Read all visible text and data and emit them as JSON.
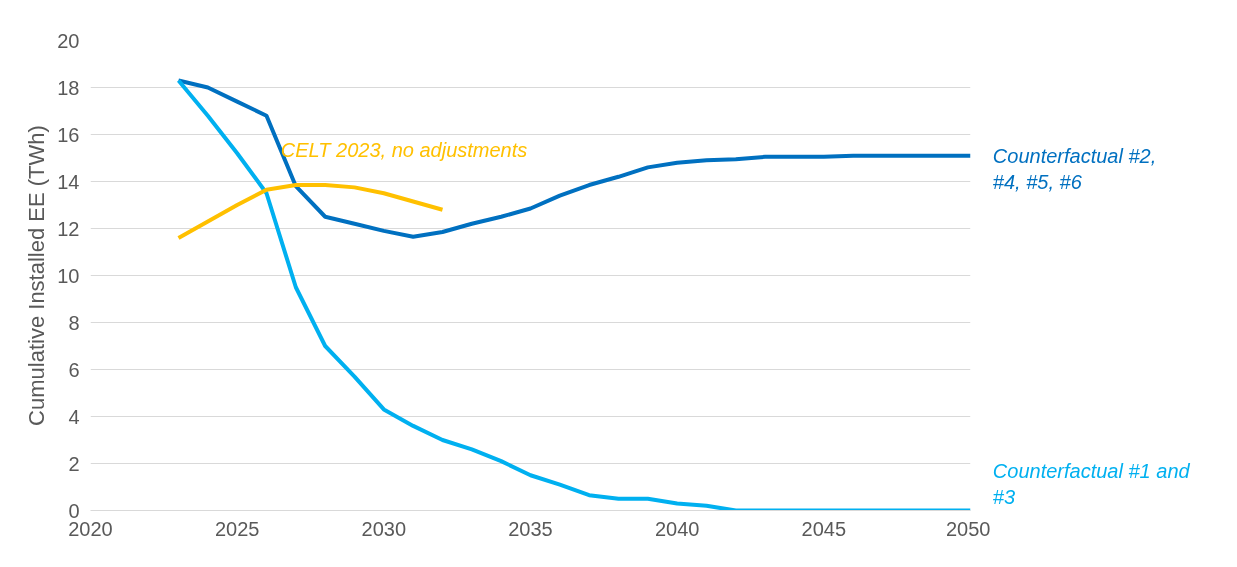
{
  "chart_data": {
    "type": "line",
    "ylabel": "Cumulative Installed EE (TWh)",
    "xlim": [
      2020,
      2050
    ],
    "xticks": [
      2020,
      2025,
      2030,
      2035,
      2040,
      2045,
      2050
    ],
    "ylim": [
      0,
      20
    ],
    "yticks": [
      0,
      2,
      4,
      6,
      8,
      10,
      12,
      14,
      16,
      18,
      20
    ],
    "grid": "y",
    "marker": "none",
    "line_style": "solid",
    "series": [
      {
        "name": "Counterfactual #2, #4, #5, #6",
        "color": "#0070c0",
        "x": [
          2023,
          2024,
          2025,
          2026,
          2027,
          2028,
          2029,
          2030,
          2031,
          2032,
          2033,
          2034,
          2035,
          2036,
          2037,
          2038,
          2039,
          2040,
          2041,
          2042,
          2043,
          2044,
          2045,
          2046,
          2047,
          2048,
          2049,
          2050
        ],
        "values": [
          18.3,
          18.0,
          17.4,
          16.8,
          13.8,
          12.5,
          12.2,
          11.9,
          11.65,
          11.85,
          12.2,
          12.5,
          12.85,
          13.4,
          13.85,
          14.2,
          14.6,
          14.8,
          14.9,
          14.95,
          15.05,
          15.05,
          15.05,
          15.1,
          15.1,
          15.1,
          15.1,
          15.1
        ]
      },
      {
        "name": "Counterfactual #1 and #3",
        "color": "#00b0f0",
        "x": [
          2023,
          2024,
          2025,
          2026,
          2027,
          2028,
          2029,
          2030,
          2031,
          2032,
          2033,
          2034,
          2035,
          2036,
          2037,
          2038,
          2039,
          2040,
          2041,
          2042,
          2043,
          2044,
          2045,
          2046,
          2047,
          2048,
          2049,
          2050
        ],
        "values": [
          18.3,
          16.8,
          15.2,
          13.5,
          9.5,
          7.0,
          5.7,
          4.3,
          3.6,
          3.0,
          2.6,
          2.1,
          1.5,
          1.1,
          0.65,
          0.5,
          0.5,
          0.3,
          0.2,
          0,
          0,
          0,
          0,
          0,
          0,
          0,
          0,
          0
        ]
      },
      {
        "name": "CELT 2023, no adjustments",
        "color": "#ffc000",
        "x": [
          2023,
          2024,
          2025,
          2026,
          2027,
          2028,
          2029,
          2030,
          2031,
          2032
        ],
        "values": [
          11.6,
          12.3,
          13.0,
          13.65,
          13.85,
          13.85,
          13.75,
          13.5,
          13.15,
          12.8
        ]
      }
    ]
  }
}
